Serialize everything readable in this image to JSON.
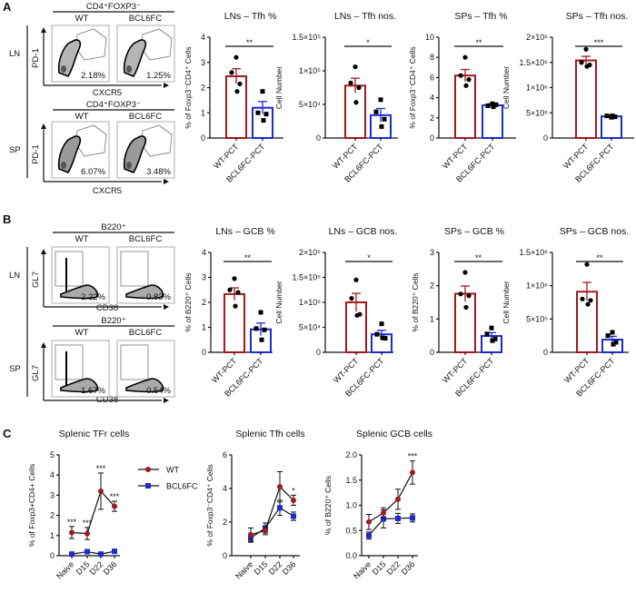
{
  "panels": [
    "A",
    "B",
    "C"
  ],
  "colors": {
    "WT": "#a3191f",
    "BCL6FC": "#1d2ad6",
    "axis": "#111111"
  },
  "flow": [
    {
      "panel": "A",
      "header": "CD4⁺FOXP3⁻",
      "groups": [
        "WT",
        "BCL6FC"
      ],
      "y_axis": "PD-1",
      "x_axis": "CXCR5",
      "rows": [
        {
          "label": "LN",
          "percents": [
            "2.18%",
            "1.25%"
          ]
        },
        {
          "label": "SP",
          "percents": [
            "6.07%",
            "3.48%"
          ]
        }
      ]
    },
    {
      "panel": "B",
      "header": "B220⁺",
      "groups": [
        "WT",
        "BCL6FC"
      ],
      "y_axis": "GL7",
      "x_axis": "CD38",
      "rows": [
        {
          "label": "LN",
          "percents": [
            "2.22%",
            "0.83%"
          ]
        },
        {
          "label": "SP",
          "percents": [
            "1.67%",
            "0.54%"
          ]
        }
      ]
    }
  ],
  "chart_data": [
    {
      "type": "bar",
      "title": "LNs – Tfh %",
      "ylabel": "% of Foxp3⁻CD4⁺ Cells",
      "categories": [
        "WT-PCT",
        "BCL6FC-PCT"
      ],
      "ylim": [
        0,
        4
      ],
      "yticks": [
        {
          "v": 0,
          "label": "0"
        },
        {
          "v": 1,
          "label": "1"
        },
        {
          "v": 2,
          "label": "2"
        },
        {
          "v": 3,
          "label": "3"
        },
        {
          "v": 4,
          "label": "4"
        }
      ],
      "means": [
        2.45,
        1.2
      ],
      "sem": [
        0.3,
        0.25
      ],
      "points": [
        [
          3.2,
          2.6,
          2.15,
          1.85
        ],
        [
          1.85,
          1.0,
          0.95,
          0.7
        ]
      ],
      "significance": "**"
    },
    {
      "type": "bar",
      "title": "LNs – Tfh nos.",
      "ylabel": "Cell Number",
      "categories": [
        "WT-PCT",
        "BCL6FC-PCT"
      ],
      "ylim": [
        0,
        150000
      ],
      "yticks": [
        {
          "v": 0,
          "label": "0"
        },
        {
          "v": 50000,
          "label": "5×10⁴"
        },
        {
          "v": 100000,
          "label": "1×10⁵"
        },
        {
          "v": 150000,
          "label": "1.5×10⁵"
        }
      ],
      "means": [
        78000,
        34000
      ],
      "sem": [
        11000,
        10000
      ],
      "points": [
        [
          106000,
          82000,
          75000,
          53000
        ],
        [
          57000,
          39000,
          28000,
          17000
        ]
      ],
      "significance": "*"
    },
    {
      "type": "bar",
      "title": "SPs – Tfh %",
      "ylabel": "% of Foxp3⁻CD4⁺ Cells",
      "categories": [
        "WT-PCT",
        "BCL6FC-PCT"
      ],
      "ylim": [
        0,
        10
      ],
      "yticks": [
        {
          "v": 0,
          "label": "0"
        },
        {
          "v": 2,
          "label": "2"
        },
        {
          "v": 4,
          "label": "4"
        },
        {
          "v": 6,
          "label": "6"
        },
        {
          "v": 8,
          "label": "8"
        },
        {
          "v": 10,
          "label": "10"
        }
      ],
      "means": [
        6.2,
        3.25
      ],
      "sem": [
        0.6,
        0.15
      ],
      "points": [
        [
          8.0,
          6.2,
          5.8,
          5.2
        ],
        [
          3.4,
          3.2,
          3.3,
          3.1
        ]
      ],
      "significance": "**"
    },
    {
      "type": "bar",
      "title": "SPs – Tfh nos.",
      "ylabel": "Cell Number",
      "categories": [
        "WT-PCT",
        "BCL6FC-PCT"
      ],
      "ylim": [
        0,
        2000000
      ],
      "yticks": [
        {
          "v": 0,
          "label": "0"
        },
        {
          "v": 500000,
          "label": "5×10⁵"
        },
        {
          "v": 1000000,
          "label": "1×10⁶"
        },
        {
          "v": 1500000,
          "label": "1.5×10⁶"
        },
        {
          "v": 2000000,
          "label": "2×10⁶"
        }
      ],
      "means": [
        1540000,
        430000
      ],
      "sem": [
        80000,
        20000
      ],
      "points": [
        [
          1760000,
          1500000,
          1450000,
          1420000
        ],
        [
          410000,
          440000,
          420000,
          440000
        ]
      ],
      "significance": "***"
    },
    {
      "type": "bar",
      "title": "LNs – GCB %",
      "ylabel": "% of B220⁺ Cells",
      "categories": [
        "WT-PCT",
        "BCL6FC-PCT"
      ],
      "ylim": [
        0,
        4
      ],
      "yticks": [
        {
          "v": 0,
          "label": "0"
        },
        {
          "v": 1,
          "label": "1"
        },
        {
          "v": 2,
          "label": "2"
        },
        {
          "v": 3,
          "label": "3"
        },
        {
          "v": 4,
          "label": "4"
        }
      ],
      "means": [
        2.33,
        0.92
      ],
      "sem": [
        0.25,
        0.25
      ],
      "points": [
        [
          2.95,
          2.5,
          2.4,
          1.85
        ],
        [
          1.6,
          0.95,
          0.9,
          0.5
        ]
      ],
      "significance": "**"
    },
    {
      "type": "bar",
      "title": "LNs – GCB nos.",
      "ylabel": "Cell Number",
      "categories": [
        "WT-PCT",
        "BCL6FC-PCT"
      ],
      "ylim": [
        0,
        200000
      ],
      "yticks": [
        {
          "v": 0,
          "label": "0"
        },
        {
          "v": 50000,
          "label": "5×10⁴"
        },
        {
          "v": 100000,
          "label": "1×10⁵"
        },
        {
          "v": 150000,
          "label": "1.5×10⁵"
        },
        {
          "v": 200000,
          "label": "2×10⁵"
        }
      ],
      "means": [
        100000,
        36000
      ],
      "sem": [
        18000,
        8000
      ],
      "points": [
        [
          145000,
          108000,
          76000,
          74000
        ],
        [
          57000,
          36000,
          28000,
          29000
        ]
      ],
      "significance": "*"
    },
    {
      "type": "bar",
      "title": "SPs – GCB %",
      "ylabel": "% of B220⁺ Cells",
      "categories": [
        "WT-PCT",
        "BCL6FC-PCT"
      ],
      "ylim": [
        0,
        3
      ],
      "yticks": [
        {
          "v": 0,
          "label": "0"
        },
        {
          "v": 1,
          "label": "1"
        },
        {
          "v": 2,
          "label": "2"
        },
        {
          "v": 3,
          "label": "3"
        }
      ],
      "means": [
        1.76,
        0.49
      ],
      "sem": [
        0.23,
        0.1
      ],
      "points": [
        [
          2.4,
          1.75,
          1.7,
          1.35
        ],
        [
          0.73,
          0.55,
          0.4,
          0.35
        ]
      ],
      "significance": "**"
    },
    {
      "type": "bar",
      "title": "SPs – GCB nos.",
      "ylabel": "Cell Number",
      "categories": [
        "WT-PCT",
        "BCL6FC-PCT"
      ],
      "ylim": [
        0,
        1500000
      ],
      "yticks": [
        {
          "v": 0,
          "label": "0"
        },
        {
          "v": 500000,
          "label": "5×10⁵"
        },
        {
          "v": 1000000,
          "label": "1×10⁶"
        },
        {
          "v": 1500000,
          "label": "1.5×10⁶"
        }
      ],
      "means": [
        910000,
        190000
      ],
      "sem": [
        140000,
        50000
      ],
      "points": [
        [
          1320000,
          800000,
          780000,
          720000
        ],
        [
          300000,
          250000,
          150000,
          120000
        ]
      ],
      "significance": "**"
    },
    {
      "type": "line",
      "title": "Splenic TFr cells",
      "ylabel": "% of Foxp3+CD4+ Cells",
      "x": [
        "Naive",
        "D15",
        "D22",
        "D36"
      ],
      "ylim": [
        0,
        5
      ],
      "yticks": [
        {
          "v": 0,
          "label": "0"
        },
        {
          "v": 1,
          "label": "1"
        },
        {
          "v": 2,
          "label": "2"
        },
        {
          "v": 3,
          "label": "3"
        },
        {
          "v": 4,
          "label": "4"
        },
        {
          "v": 5,
          "label": "5"
        }
      ],
      "series": [
        {
          "name": "WT",
          "values": [
            1.15,
            1.1,
            3.2,
            2.45
          ],
          "err": [
            0.3,
            0.3,
            0.9,
            0.25
          ]
        },
        {
          "name": "BCL6FC",
          "values": [
            0.08,
            0.2,
            0.08,
            0.22
          ],
          "err": [
            0.04,
            0.08,
            0.04,
            0.04
          ]
        }
      ],
      "significance": [
        "***",
        "***",
        "***",
        "***"
      ]
    },
    {
      "type": "line",
      "title": "Splenic Tfh cells",
      "ylabel": "% of Foxp3⁻CD4⁺ Cells",
      "x": [
        "Naive",
        "D15",
        "D22",
        "D36"
      ],
      "ylim": [
        0,
        6
      ],
      "yticks": [
        {
          "v": 0,
          "label": "0"
        },
        {
          "v": 2,
          "label": "2"
        },
        {
          "v": 4,
          "label": "4"
        },
        {
          "v": 6,
          "label": "6"
        }
      ],
      "series": [
        {
          "name": "WT",
          "values": [
            1.25,
            1.5,
            4.1,
            3.3
          ],
          "err": [
            0.4,
            0.25,
            0.9,
            0.3
          ]
        },
        {
          "name": "BCL6FC",
          "values": [
            1.05,
            1.65,
            2.85,
            2.35
          ],
          "err": [
            0.25,
            0.3,
            0.45,
            0.25
          ]
        }
      ],
      "significance": [
        "",
        "",
        "",
        "*"
      ]
    },
    {
      "type": "line",
      "title": "Splenic GCB cells",
      "ylabel": "% of B220⁺ Cells",
      "x": [
        "Naive",
        "D15",
        "D22",
        "D36"
      ],
      "ylim": [
        0,
        2
      ],
      "yticks": [
        {
          "v": 0,
          "label": "0.0"
        },
        {
          "v": 0.5,
          "label": "0.5"
        },
        {
          "v": 1,
          "label": "1.0"
        },
        {
          "v": 1.5,
          "label": "1.5"
        },
        {
          "v": 2,
          "label": "2.0"
        }
      ],
      "series": [
        {
          "name": "WT",
          "values": [
            0.67,
            0.85,
            1.12,
            1.65
          ],
          "err": [
            0.15,
            0.1,
            0.2,
            0.23
          ]
        },
        {
          "name": "BCL6FC",
          "values": [
            0.4,
            0.73,
            0.74,
            0.75
          ],
          "err": [
            0.07,
            0.18,
            0.1,
            0.08
          ]
        }
      ],
      "significance": [
        "",
        "",
        "",
        "***"
      ]
    }
  ],
  "legend": [
    {
      "label": "WT"
    },
    {
      "label": "BCL6FC"
    }
  ]
}
